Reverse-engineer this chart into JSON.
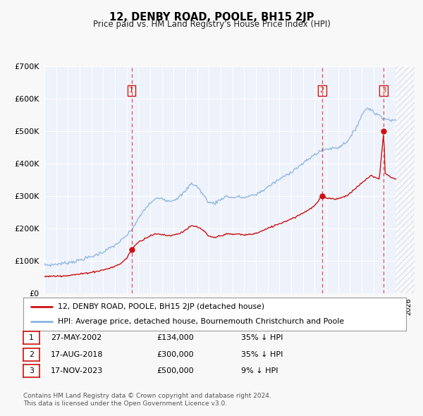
{
  "title": "12, DENBY ROAD, POOLE, BH15 2JP",
  "subtitle": "Price paid vs. HM Land Registry's House Price Index (HPI)",
  "ylim": [
    0,
    700000
  ],
  "xlim_start": 1995.0,
  "xlim_end": 2026.5,
  "yticks": [
    0,
    100000,
    200000,
    300000,
    400000,
    500000,
    600000,
    700000
  ],
  "bg_color": "#f8f8f8",
  "plot_bg_color": "#eef2fb",
  "grid_color": "#ffffff",
  "hpi_color": "#88b4e0",
  "price_color": "#cc1111",
  "vline_color": "#dd3333",
  "sale_points": [
    {
      "year": 2002.41,
      "price": 134000,
      "label": "1"
    },
    {
      "year": 2018.63,
      "price": 300000,
      "label": "2"
    },
    {
      "year": 2023.88,
      "price": 500000,
      "label": "3"
    }
  ],
  "vline_years": [
    2002.41,
    2018.63,
    2023.88
  ],
  "legend_price_label": "12, DENBY ROAD, POOLE, BH15 2JP (detached house)",
  "legend_hpi_label": "HPI: Average price, detached house, Bournemouth Christchurch and Poole",
  "table_rows": [
    {
      "num": "1",
      "date": "27-MAY-2002",
      "price": "£134,000",
      "pct": "35% ↓ HPI"
    },
    {
      "num": "2",
      "date": "17-AUG-2018",
      "price": "£300,000",
      "pct": "35% ↓ HPI"
    },
    {
      "num": "3",
      "date": "17-NOV-2023",
      "price": "£500,000",
      "pct": "9% ↓ HPI"
    }
  ],
  "footnote1": "Contains HM Land Registry data © Crown copyright and database right 2024.",
  "footnote2": "This data is licensed under the Open Government Licence v3.0.",
  "hatch_region_start": 2024.9,
  "hatch_region_end": 2026.5,
  "hpi_anchors": [
    [
      1995.0,
      88000
    ],
    [
      1995.5,
      87000
    ],
    [
      1996.0,
      90000
    ],
    [
      1996.5,
      92000
    ],
    [
      1997.0,
      95000
    ],
    [
      1997.5,
      98000
    ],
    [
      1998.0,
      102000
    ],
    [
      1998.5,
      108000
    ],
    [
      1999.0,
      113000
    ],
    [
      1999.5,
      120000
    ],
    [
      2000.0,
      128000
    ],
    [
      2000.5,
      138000
    ],
    [
      2001.0,
      148000
    ],
    [
      2001.5,
      162000
    ],
    [
      2002.0,
      178000
    ],
    [
      2002.5,
      200000
    ],
    [
      2003.0,
      230000
    ],
    [
      2003.5,
      258000
    ],
    [
      2004.0,
      278000
    ],
    [
      2004.5,
      292000
    ],
    [
      2005.0,
      295000
    ],
    [
      2005.5,
      285000
    ],
    [
      2006.0,
      288000
    ],
    [
      2006.5,
      298000
    ],
    [
      2007.0,
      315000
    ],
    [
      2007.5,
      340000
    ],
    [
      2008.0,
      330000
    ],
    [
      2008.5,
      305000
    ],
    [
      2009.0,
      280000
    ],
    [
      2009.5,
      278000
    ],
    [
      2010.0,
      290000
    ],
    [
      2010.5,
      300000
    ],
    [
      2011.0,
      295000
    ],
    [
      2011.5,
      298000
    ],
    [
      2012.0,
      295000
    ],
    [
      2012.5,
      300000
    ],
    [
      2013.0,
      305000
    ],
    [
      2013.5,
      315000
    ],
    [
      2014.0,
      328000
    ],
    [
      2014.5,
      340000
    ],
    [
      2015.0,
      352000
    ],
    [
      2015.5,
      363000
    ],
    [
      2016.0,
      375000
    ],
    [
      2016.5,
      388000
    ],
    [
      2017.0,
      400000
    ],
    [
      2017.5,
      415000
    ],
    [
      2018.0,
      428000
    ],
    [
      2018.5,
      440000
    ],
    [
      2019.0,
      445000
    ],
    [
      2019.5,
      448000
    ],
    [
      2020.0,
      450000
    ],
    [
      2020.5,
      462000
    ],
    [
      2021.0,
      478000
    ],
    [
      2021.5,
      510000
    ],
    [
      2022.0,
      548000
    ],
    [
      2022.3,
      568000
    ],
    [
      2022.6,
      572000
    ],
    [
      2022.9,
      565000
    ],
    [
      2023.0,
      558000
    ],
    [
      2023.3,
      552000
    ],
    [
      2023.6,
      548000
    ],
    [
      2023.9,
      542000
    ],
    [
      2024.0,
      538000
    ],
    [
      2024.5,
      535000
    ],
    [
      2024.9,
      532000
    ]
  ],
  "price_anchors": [
    [
      1995.0,
      52000
    ],
    [
      1995.5,
      52500
    ],
    [
      1996.0,
      53000
    ],
    [
      1996.5,
      54000
    ],
    [
      1997.0,
      55000
    ],
    [
      1997.5,
      57000
    ],
    [
      1998.0,
      59000
    ],
    [
      1998.5,
      62000
    ],
    [
      1999.0,
      65000
    ],
    [
      1999.5,
      68000
    ],
    [
      2000.0,
      72000
    ],
    [
      2000.5,
      77000
    ],
    [
      2001.0,
      83000
    ],
    [
      2001.5,
      92000
    ],
    [
      2002.0,
      108000
    ],
    [
      2002.41,
      134000
    ],
    [
      2002.7,
      148000
    ],
    [
      2003.0,
      158000
    ],
    [
      2003.5,
      168000
    ],
    [
      2004.0,
      178000
    ],
    [
      2004.5,
      183000
    ],
    [
      2005.0,
      182000
    ],
    [
      2005.5,
      178000
    ],
    [
      2006.0,
      180000
    ],
    [
      2006.5,
      185000
    ],
    [
      2007.0,
      195000
    ],
    [
      2007.5,
      208000
    ],
    [
      2008.0,
      205000
    ],
    [
      2008.5,
      195000
    ],
    [
      2009.0,
      175000
    ],
    [
      2009.5,
      172000
    ],
    [
      2010.0,
      178000
    ],
    [
      2010.5,
      183000
    ],
    [
      2011.0,
      182000
    ],
    [
      2011.5,
      183000
    ],
    [
      2012.0,
      180000
    ],
    [
      2012.5,
      182000
    ],
    [
      2013.0,
      185000
    ],
    [
      2013.5,
      192000
    ],
    [
      2014.0,
      200000
    ],
    [
      2014.5,
      208000
    ],
    [
      2015.0,
      215000
    ],
    [
      2015.5,
      222000
    ],
    [
      2016.0,
      230000
    ],
    [
      2016.5,
      238000
    ],
    [
      2017.0,
      248000
    ],
    [
      2017.5,
      258000
    ],
    [
      2018.0,
      270000
    ],
    [
      2018.63,
      300000
    ],
    [
      2019.0,
      295000
    ],
    [
      2019.5,
      292000
    ],
    [
      2020.0,
      292000
    ],
    [
      2020.5,
      298000
    ],
    [
      2021.0,
      308000
    ],
    [
      2021.5,
      325000
    ],
    [
      2022.0,
      340000
    ],
    [
      2022.5,
      355000
    ],
    [
      2022.8,
      365000
    ],
    [
      2023.0,
      360000
    ],
    [
      2023.5,
      352000
    ],
    [
      2023.88,
      500000
    ],
    [
      2024.0,
      370000
    ],
    [
      2024.5,
      358000
    ],
    [
      2024.9,
      352000
    ]
  ]
}
